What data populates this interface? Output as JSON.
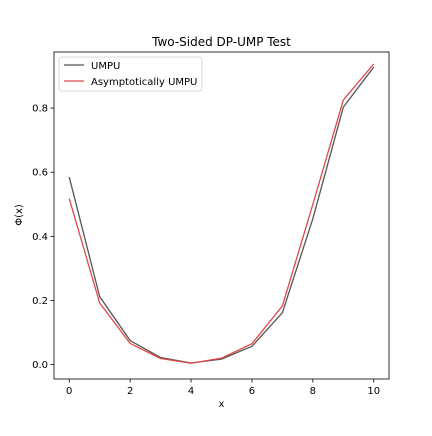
{
  "chart_data": {
    "type": "line",
    "title": "Two-Sided DP-UMP Test",
    "xlabel": "x",
    "ylabel": "Φ(x)",
    "x": [
      0,
      1,
      2,
      3,
      4,
      5,
      6,
      7,
      8,
      9,
      10
    ],
    "xlim": [
      -0.5,
      10.5
    ],
    "ylim": [
      -0.045,
      0.975
    ],
    "xticks": [
      0,
      2,
      4,
      6,
      8,
      10
    ],
    "yticks": [
      0.0,
      0.2,
      0.4,
      0.6,
      0.8
    ],
    "xtick_labels": [
      "0",
      "2",
      "4",
      "6",
      "8",
      "10"
    ],
    "ytick_labels": [
      "0.0",
      "0.2",
      "0.4",
      "0.6",
      "0.8"
    ],
    "grid": false,
    "legend_position": "top-left",
    "series": [
      {
        "name": "UMPU",
        "color": "#555555",
        "values": [
          0.585,
          0.212,
          0.075,
          0.022,
          0.005,
          0.017,
          0.057,
          0.162,
          0.455,
          0.803,
          0.928
        ]
      },
      {
        "name": "Asymptotically UMPU",
        "color": "#e04848",
        "values": [
          0.518,
          0.192,
          0.066,
          0.019,
          0.004,
          0.02,
          0.065,
          0.183,
          0.5,
          0.825,
          0.938
        ]
      }
    ]
  }
}
